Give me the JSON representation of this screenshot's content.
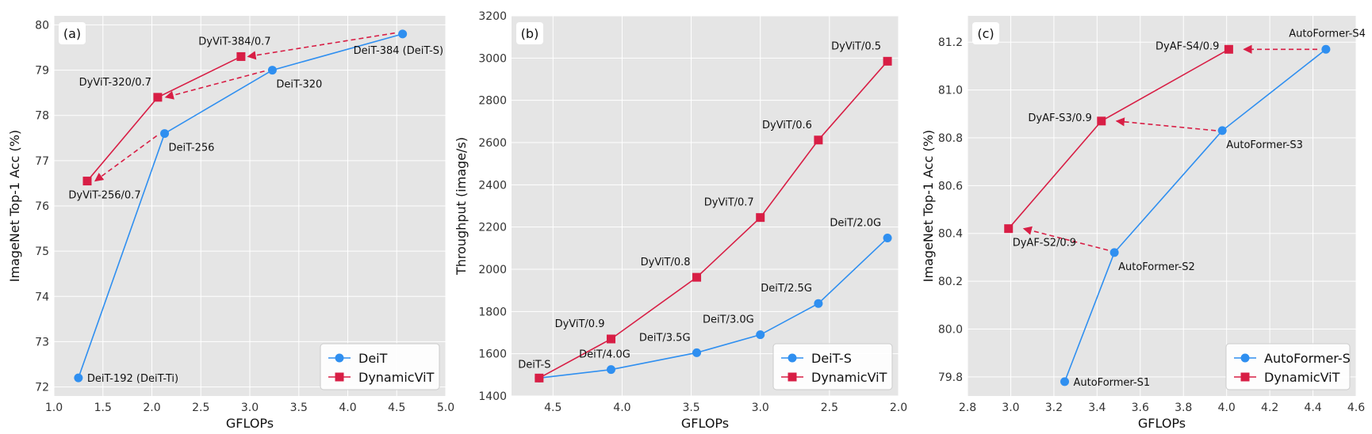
{
  "colors": {
    "blue": "#2f8ff0",
    "red": "#d81e45",
    "plot_bg": "#e5e5e5",
    "grid": "#ffffff"
  },
  "chart_data": [
    {
      "type": "line",
      "panel_label": "(a)",
      "xlabel": "GFLOPs",
      "ylabel": "ImageNet Top-1 Acc (%)",
      "xlim": [
        1.0,
        5.0
      ],
      "ylim": [
        71.8,
        80.2
      ],
      "xticks": [
        1.0,
        1.5,
        2.0,
        2.5,
        3.0,
        3.5,
        4.0,
        4.5,
        5.0
      ],
      "yticks": [
        72,
        73,
        74,
        75,
        76,
        77,
        78,
        79,
        80
      ],
      "tick_decimals_x": 1,
      "tick_decimals_y": 0,
      "x_reversed": false,
      "legend_position": "bottom-right",
      "grid": true,
      "series": [
        {
          "name": "DeiT",
          "marker": "circle",
          "color": "#2f8ff0",
          "points": [
            {
              "x": 1.25,
              "y": 72.2,
              "label": "DeiT-192 (DeiT-Ti)",
              "anchor": "right"
            },
            {
              "x": 2.13,
              "y": 77.6,
              "label": "DeiT-256",
              "anchor": "below-right"
            },
            {
              "x": 3.23,
              "y": 79.0,
              "label": "DeiT-320",
              "anchor": "below-right"
            },
            {
              "x": 4.56,
              "y": 79.8,
              "label": "DeiT-384 (DeiT-S)",
              "anchor": "below-left"
            }
          ]
        },
        {
          "name": "DynamicViT",
          "marker": "square",
          "color": "#d81e45",
          "points": [
            {
              "x": 1.34,
              "y": 76.55,
              "label": "DyViT-256/0.7",
              "anchor": "below-left"
            },
            {
              "x": 2.06,
              "y": 78.4,
              "label": "DyViT-320/0.7",
              "anchor": "above-left"
            },
            {
              "x": 2.91,
              "y": 79.3,
              "label": "DyViT-384/0.7",
              "anchor": "above"
            }
          ]
        }
      ],
      "arrows": [
        {
          "from": [
            2.05,
            77.55
          ],
          "to": [
            1.42,
            76.55
          ]
        },
        {
          "from": [
            3.15,
            78.98
          ],
          "to": [
            2.14,
            78.4
          ]
        },
        {
          "from": [
            4.48,
            79.82
          ],
          "to": [
            2.98,
            79.3
          ]
        }
      ]
    },
    {
      "type": "line",
      "panel_label": "(b)",
      "xlabel": "GFLOPs",
      "ylabel": "Throughput (image/s)",
      "xlim": [
        4.8,
        2.0
      ],
      "ylim": [
        1400,
        3200
      ],
      "xticks": [
        4.5,
        4.0,
        3.5,
        3.0,
        2.5,
        2.0
      ],
      "yticks": [
        1400,
        1600,
        1800,
        2000,
        2200,
        2400,
        2600,
        2800,
        3000,
        3200
      ],
      "tick_decimals_x": 1,
      "tick_decimals_y": 0,
      "x_reversed": true,
      "legend_position": "bottom-right",
      "grid": true,
      "series": [
        {
          "name": "DeiT-S",
          "marker": "circle",
          "color": "#2f8ff0",
          "points": [
            {
              "x": 4.6,
              "y": 1485,
              "label": "",
              "anchor": "none"
            },
            {
              "x": 4.08,
              "y": 1525,
              "label": "DeiT/4.0G",
              "anchor": "above"
            },
            {
              "x": 3.46,
              "y": 1605,
              "label": "DeiT/3.5G",
              "anchor": "above-left"
            },
            {
              "x": 3.0,
              "y": 1690,
              "label": "DeiT/3.0G",
              "anchor": "above-left"
            },
            {
              "x": 2.58,
              "y": 1838,
              "label": "DeiT/2.5G",
              "anchor": "above-left"
            },
            {
              "x": 2.08,
              "y": 2148,
              "label": "DeiT/2.0G",
              "anchor": "above-left"
            }
          ]
        },
        {
          "name": "DynamicViT",
          "marker": "square",
          "color": "#d81e45",
          "points": [
            {
              "x": 4.6,
              "y": 1485,
              "label": "DeiT-S",
              "anchor": "above"
            },
            {
              "x": 4.08,
              "y": 1670,
              "label": "DyViT/0.9",
              "anchor": "above-left"
            },
            {
              "x": 3.46,
              "y": 1962,
              "label": "DyViT/0.8",
              "anchor": "above-left"
            },
            {
              "x": 3.0,
              "y": 2245,
              "label": "DyViT/0.7",
              "anchor": "above-left"
            },
            {
              "x": 2.58,
              "y": 2612,
              "label": "DyViT/0.6",
              "anchor": "above-left"
            },
            {
              "x": 2.08,
              "y": 2985,
              "label": "DyViT/0.5",
              "anchor": "above-left"
            }
          ]
        }
      ],
      "arrows": []
    },
    {
      "type": "line",
      "panel_label": "(c)",
      "xlabel": "GFLOPs",
      "ylabel": "ImageNet Top-1 Acc (%)",
      "xlim": [
        2.8,
        4.6
      ],
      "ylim": [
        79.72,
        81.31
      ],
      "xticks": [
        2.8,
        3.0,
        3.2,
        3.4,
        3.6,
        3.8,
        4.0,
        4.2,
        4.4,
        4.6
      ],
      "yticks": [
        79.8,
        80.0,
        80.2,
        80.4,
        80.6,
        80.8,
        81.0,
        81.2
      ],
      "tick_decimals_x": 1,
      "tick_decimals_y": 1,
      "x_reversed": false,
      "legend_position": "bottom-right",
      "grid": true,
      "series": [
        {
          "name": "AutoFormer-S",
          "marker": "circle",
          "color": "#2f8ff0",
          "points": [
            {
              "x": 3.25,
              "y": 79.78,
              "label": "AutoFormer-S1",
              "anchor": "right"
            },
            {
              "x": 3.48,
              "y": 80.32,
              "label": "AutoFormer-S2",
              "anchor": "below-right"
            },
            {
              "x": 3.98,
              "y": 80.83,
              "label": "AutoFormer-S3",
              "anchor": "below-right"
            },
            {
              "x": 4.46,
              "y": 81.17,
              "label": "AutoFormer-S4",
              "anchor": "above-left-high"
            }
          ]
        },
        {
          "name": "DynamicViT",
          "marker": "square",
          "color": "#d81e45",
          "points": [
            {
              "x": 2.99,
              "y": 80.42,
              "label": "DyAF-S2/0.9",
              "anchor": "below-right"
            },
            {
              "x": 3.42,
              "y": 80.87,
              "label": "DyAF-S3/0.9",
              "anchor": "left"
            },
            {
              "x": 4.01,
              "y": 81.17,
              "label": "DyAF-S4/0.9",
              "anchor": "left"
            }
          ]
        }
      ],
      "arrows": [
        {
          "from": [
            3.45,
            80.33
          ],
          "to": [
            3.06,
            80.42
          ]
        },
        {
          "from": [
            3.95,
            80.83
          ],
          "to": [
            3.49,
            80.87
          ]
        },
        {
          "from": [
            4.42,
            81.17
          ],
          "to": [
            4.08,
            81.17
          ]
        }
      ]
    }
  ]
}
